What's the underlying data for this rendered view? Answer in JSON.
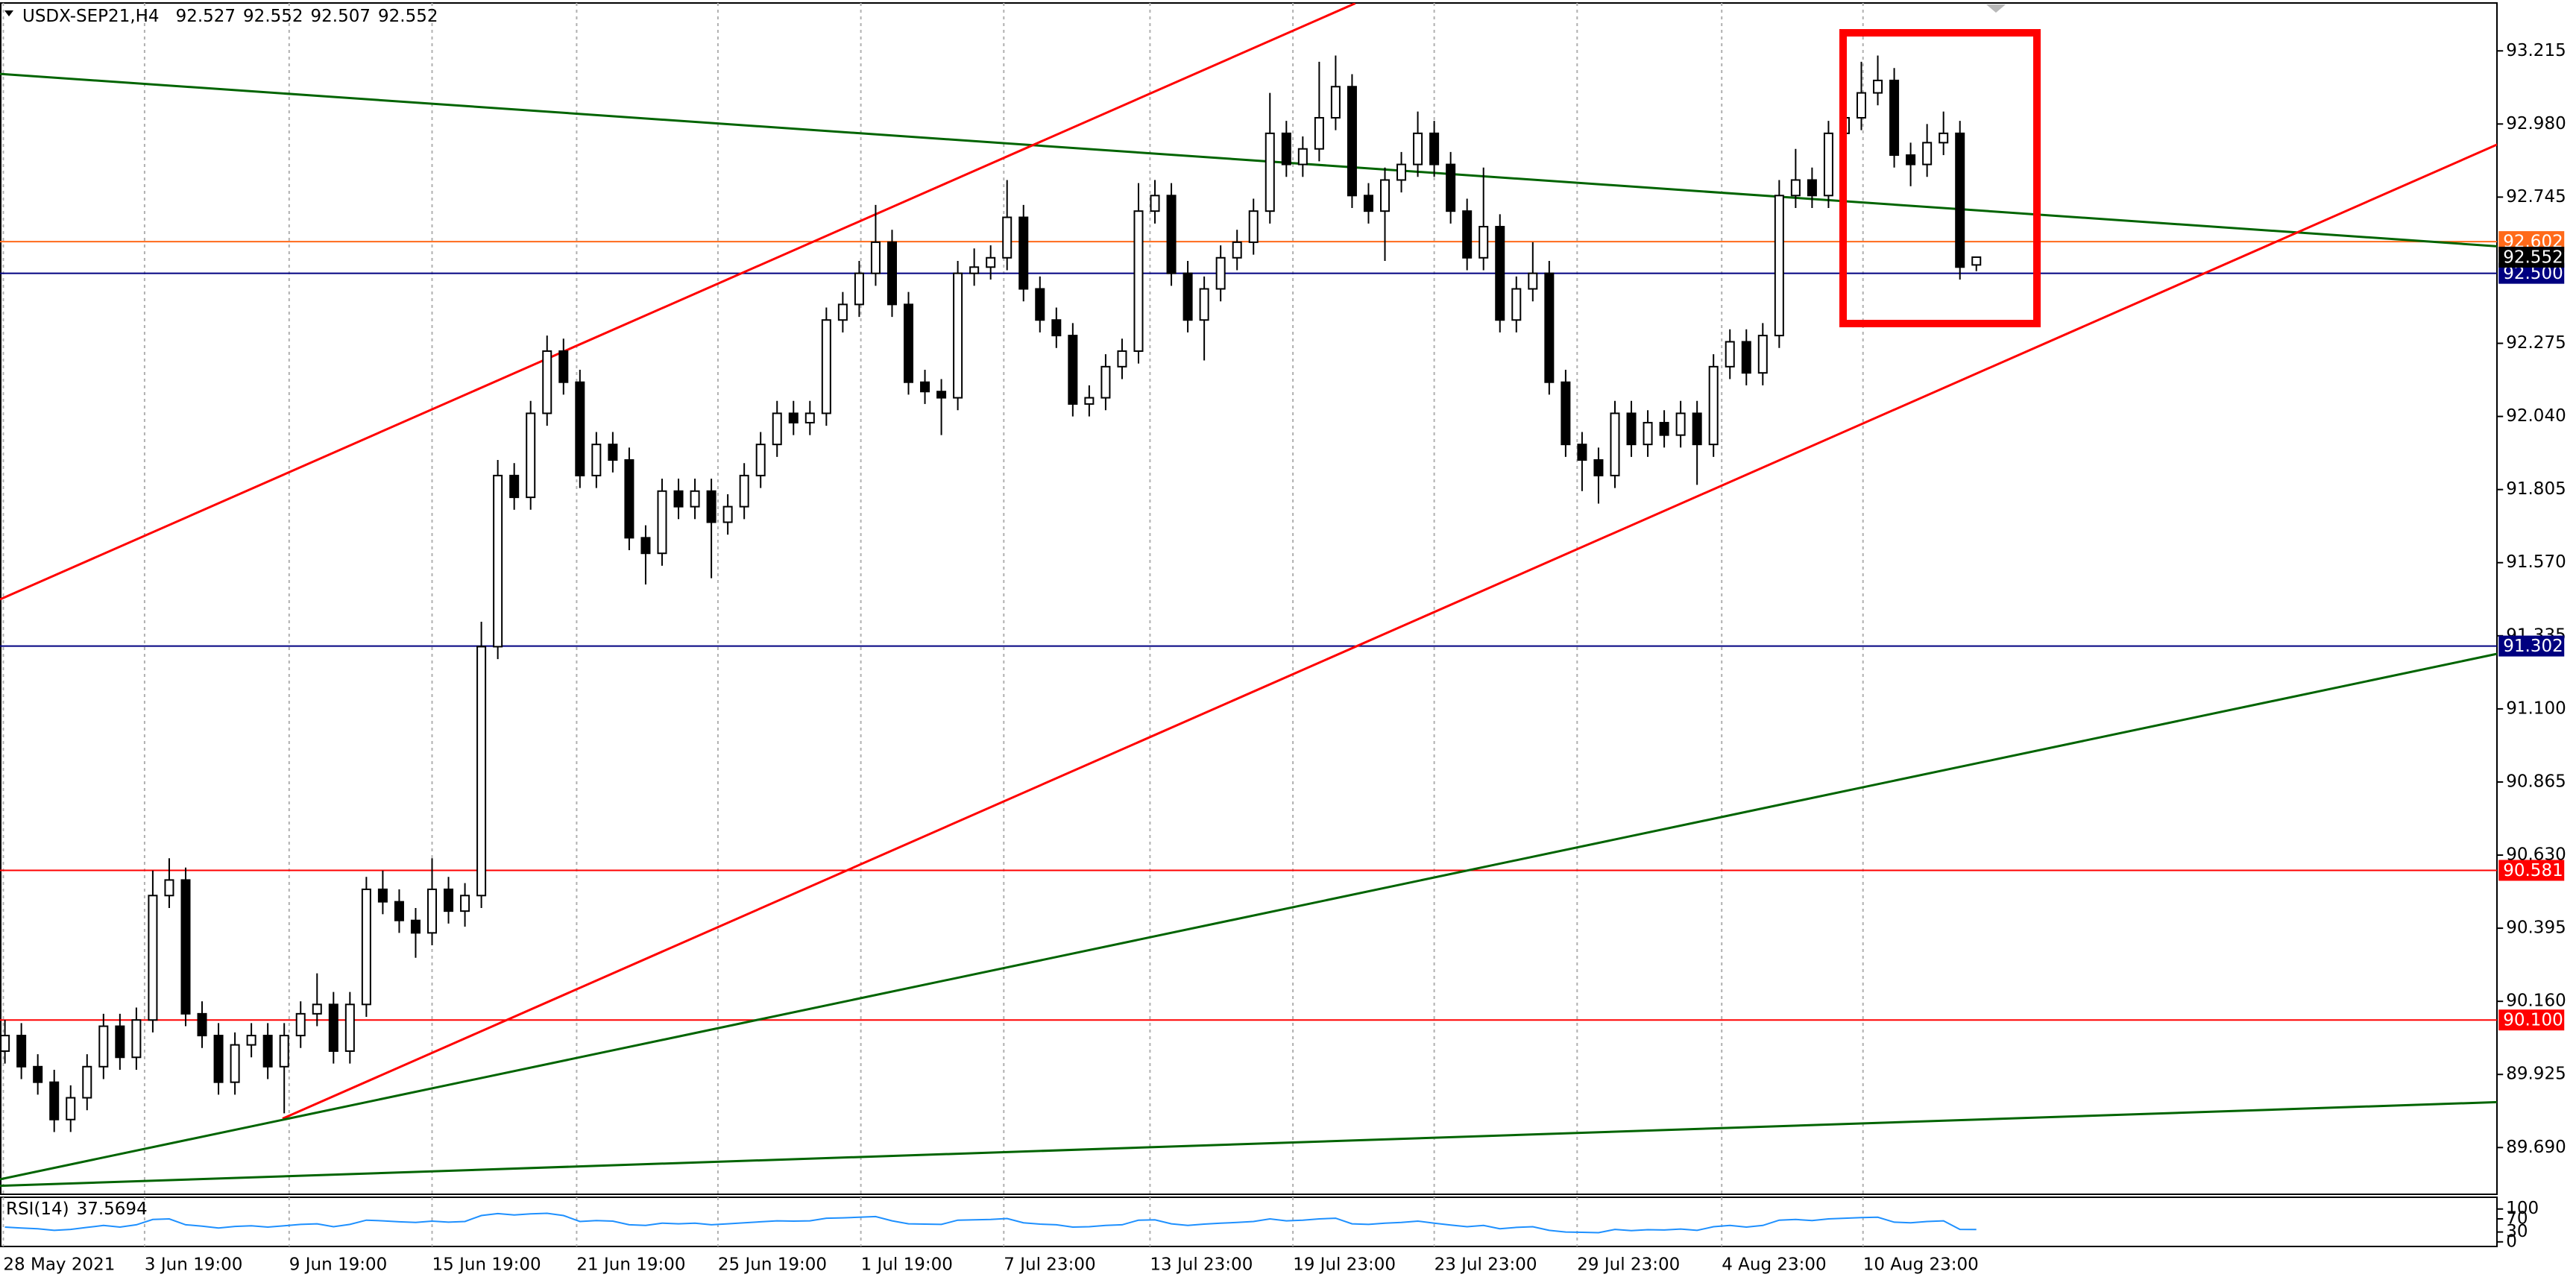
{
  "chart_data": [
    {
      "type": "candlestick",
      "title": "USDX-SEP21,H4",
      "candles": [
        [
          90.0,
          90.1,
          89.96,
          90.05
        ],
        [
          90.05,
          90.09,
          89.91,
          89.95
        ],
        [
          89.95,
          89.99,
          89.86,
          89.9
        ],
        [
          89.9,
          89.94,
          89.74,
          89.78
        ],
        [
          89.78,
          89.89,
          89.74,
          89.85
        ],
        [
          89.85,
          89.99,
          89.81,
          89.95
        ],
        [
          89.95,
          90.12,
          89.91,
          90.08
        ],
        [
          90.08,
          90.12,
          89.94,
          89.98
        ],
        [
          89.98,
          90.14,
          89.94,
          90.1
        ],
        [
          90.1,
          90.58,
          90.06,
          90.5
        ],
        [
          90.5,
          90.62,
          90.46,
          90.55
        ],
        [
          90.55,
          90.59,
          90.08,
          90.12
        ],
        [
          90.12,
          90.16,
          90.01,
          90.05
        ],
        [
          90.05,
          90.09,
          89.86,
          89.9
        ],
        [
          89.9,
          90.06,
          89.86,
          90.02
        ],
        [
          90.02,
          90.09,
          89.98,
          90.05
        ],
        [
          90.05,
          90.09,
          89.91,
          89.95
        ],
        [
          89.95,
          90.09,
          89.8,
          90.05
        ],
        [
          90.05,
          90.16,
          90.01,
          90.12
        ],
        [
          90.12,
          90.25,
          90.08,
          90.15
        ],
        [
          90.15,
          90.19,
          89.96,
          90.0
        ],
        [
          90.0,
          90.19,
          89.96,
          90.15
        ],
        [
          90.15,
          90.56,
          90.11,
          90.52
        ],
        [
          90.52,
          90.58,
          90.44,
          90.48
        ],
        [
          90.48,
          90.52,
          90.38,
          90.42
        ],
        [
          90.42,
          90.46,
          90.3,
          90.38
        ],
        [
          90.38,
          90.62,
          90.34,
          90.52
        ],
        [
          90.52,
          90.56,
          90.41,
          90.45
        ],
        [
          90.45,
          90.54,
          90.4,
          90.5
        ],
        [
          90.5,
          91.38,
          90.46,
          91.3
        ],
        [
          91.3,
          91.9,
          91.26,
          91.85
        ],
        [
          91.85,
          91.89,
          91.74,
          91.78
        ],
        [
          91.78,
          92.09,
          91.74,
          92.05
        ],
        [
          92.05,
          92.3,
          92.01,
          92.25
        ],
        [
          92.25,
          92.29,
          92.11,
          92.15
        ],
        [
          92.15,
          92.19,
          91.81,
          91.85
        ],
        [
          91.85,
          91.99,
          91.81,
          91.95
        ],
        [
          91.95,
          91.99,
          91.86,
          91.9
        ],
        [
          91.9,
          91.94,
          91.61,
          91.65
        ],
        [
          91.65,
          91.69,
          91.5,
          91.6
        ],
        [
          91.6,
          91.84,
          91.56,
          91.8
        ],
        [
          91.8,
          91.84,
          91.71,
          91.75
        ],
        [
          91.75,
          91.84,
          91.71,
          91.8
        ],
        [
          91.8,
          91.84,
          91.52,
          91.7
        ],
        [
          91.7,
          91.79,
          91.66,
          91.75
        ],
        [
          91.75,
          91.89,
          91.71,
          91.85
        ],
        [
          91.85,
          91.99,
          91.81,
          91.95
        ],
        [
          91.95,
          92.09,
          91.91,
          92.05
        ],
        [
          92.05,
          92.09,
          91.98,
          92.02
        ],
        [
          92.02,
          92.09,
          91.98,
          92.05
        ],
        [
          92.05,
          92.39,
          92.01,
          92.35
        ],
        [
          92.35,
          92.44,
          92.31,
          92.4
        ],
        [
          92.4,
          92.54,
          92.36,
          92.5
        ],
        [
          92.5,
          92.72,
          92.46,
          92.6
        ],
        [
          92.6,
          92.64,
          92.36,
          92.4
        ],
        [
          92.4,
          92.44,
          92.11,
          92.15
        ],
        [
          92.15,
          92.19,
          92.08,
          92.12
        ],
        [
          92.12,
          92.16,
          91.98,
          92.1
        ],
        [
          92.1,
          92.54,
          92.06,
          92.5
        ],
        [
          92.5,
          92.58,
          92.46,
          92.52
        ],
        [
          92.52,
          92.59,
          92.48,
          92.55
        ],
        [
          92.55,
          92.8,
          92.51,
          92.68
        ],
        [
          92.68,
          92.72,
          92.41,
          92.45
        ],
        [
          92.45,
          92.49,
          92.31,
          92.35
        ],
        [
          92.35,
          92.39,
          92.26,
          92.3
        ],
        [
          92.3,
          92.34,
          92.04,
          92.08
        ],
        [
          92.08,
          92.14,
          92.04,
          92.1
        ],
        [
          92.1,
          92.24,
          92.06,
          92.2
        ],
        [
          92.2,
          92.29,
          92.16,
          92.25
        ],
        [
          92.25,
          92.79,
          92.21,
          92.7
        ],
        [
          92.7,
          92.8,
          92.66,
          92.75
        ],
        [
          92.75,
          92.79,
          92.46,
          92.5
        ],
        [
          92.5,
          92.54,
          92.31,
          92.35
        ],
        [
          92.35,
          92.49,
          92.22,
          92.45
        ],
        [
          92.45,
          92.59,
          92.41,
          92.55
        ],
        [
          92.55,
          92.64,
          92.51,
          92.6
        ],
        [
          92.6,
          92.74,
          92.56,
          92.7
        ],
        [
          92.7,
          93.08,
          92.66,
          92.95
        ],
        [
          92.95,
          92.99,
          92.81,
          92.85
        ],
        [
          92.85,
          92.94,
          92.81,
          92.9
        ],
        [
          92.9,
          93.18,
          92.86,
          93.0
        ],
        [
          93.0,
          93.2,
          92.96,
          93.1
        ],
        [
          93.1,
          93.14,
          92.71,
          92.75
        ],
        [
          92.75,
          92.79,
          92.66,
          92.7
        ],
        [
          92.7,
          92.84,
          92.54,
          92.8
        ],
        [
          92.8,
          92.89,
          92.76,
          92.85
        ],
        [
          92.85,
          93.02,
          92.81,
          92.95
        ],
        [
          92.95,
          92.99,
          92.81,
          92.85
        ],
        [
          92.85,
          92.89,
          92.66,
          92.7
        ],
        [
          92.7,
          92.74,
          92.51,
          92.55
        ],
        [
          92.55,
          92.84,
          92.51,
          92.65
        ],
        [
          92.65,
          92.69,
          92.31,
          92.35
        ],
        [
          92.35,
          92.49,
          92.31,
          92.45
        ],
        [
          92.45,
          92.6,
          92.41,
          92.5
        ],
        [
          92.5,
          92.54,
          92.11,
          92.15
        ],
        [
          92.15,
          92.19,
          91.91,
          91.95
        ],
        [
          91.95,
          91.99,
          91.8,
          91.9
        ],
        [
          91.9,
          91.94,
          91.76,
          91.85
        ],
        [
          91.85,
          92.09,
          91.81,
          92.05
        ],
        [
          92.05,
          92.09,
          91.91,
          91.95
        ],
        [
          91.95,
          92.06,
          91.91,
          92.02
        ],
        [
          92.02,
          92.06,
          91.94,
          91.98
        ],
        [
          91.98,
          92.09,
          91.94,
          92.05
        ],
        [
          92.05,
          92.09,
          91.82,
          91.95
        ],
        [
          91.95,
          92.24,
          91.91,
          92.2
        ],
        [
          92.2,
          92.32,
          92.16,
          92.28
        ],
        [
          92.28,
          92.32,
          92.14,
          92.18
        ],
        [
          92.18,
          92.34,
          92.14,
          92.3
        ],
        [
          92.3,
          92.8,
          92.26,
          92.75
        ],
        [
          92.75,
          92.9,
          92.71,
          92.8
        ],
        [
          92.8,
          92.84,
          92.71,
          92.75
        ],
        [
          92.75,
          92.99,
          92.71,
          92.95
        ],
        [
          92.95,
          93.04,
          92.91,
          93.0
        ],
        [
          93.0,
          93.18,
          92.96,
          93.08
        ],
        [
          93.08,
          93.2,
          93.04,
          93.12
        ],
        [
          93.12,
          93.16,
          92.84,
          92.88
        ],
        [
          92.88,
          92.92,
          92.78,
          92.85
        ],
        [
          92.85,
          92.98,
          92.81,
          92.92
        ],
        [
          92.92,
          93.02,
          92.88,
          92.95
        ],
        [
          92.95,
          92.99,
          92.48,
          92.52
        ],
        [
          92.527,
          92.552,
          92.507,
          92.552
        ]
      ],
      "up_color": "#ffffff",
      "down_color": "#000000",
      "xlim": [
        -0.3,
        151.7
      ],
      "xticks": [
        {
          "value": -0.1,
          "label": "28 May 2021"
        },
        {
          "value": 8.5,
          "label": "3 Jun 19:00"
        },
        {
          "value": 17.3,
          "label": "9 Jun 19:00"
        },
        {
          "value": 26,
          "label": "15 Jun 19:00"
        },
        {
          "value": 34.8,
          "label": "21 Jun 19:00"
        },
        {
          "value": 43.4,
          "label": "25 Jun 19:00"
        },
        {
          "value": 52.1,
          "label": "1 Jul 19:00"
        },
        {
          "value": 60.8,
          "label": "7 Jul 23:00"
        },
        {
          "value": 69.7,
          "label": "13 Jul 23:00"
        },
        {
          "value": 78.4,
          "label": "19 Jul 23:00"
        },
        {
          "value": 87,
          "label": "23 Jul 23:00"
        },
        {
          "value": 95.7,
          "label": "29 Jul 23:00"
        },
        {
          "value": 104.5,
          "label": "4 Aug 23:00"
        },
        {
          "value": 113.1,
          "label": "10 Aug 23:00"
        }
      ],
      "ylim": [
        89.54,
        93.368
      ],
      "yticks": [
        93.215,
        {
          "value": 92.98,
          "label": "92.980"
        },
        92.745,
        92.275,
        {
          "value": 92.04,
          "label": "92.040"
        },
        91.805,
        {
          "value": 91.57,
          "label": "91.570"
        },
        91.335,
        {
          "value": 91.1,
          "label": "91.100"
        },
        90.865,
        {
          "value": 90.63,
          "label": "90.630"
        },
        90.395,
        {
          "value": 90.16,
          "label": "90.160"
        },
        89.925,
        {
          "value": 89.69,
          "label": "89.690"
        }
      ],
      "grid": true,
      "levels": [
        {
          "value": 92.602,
          "color": "#ff6a1a"
        },
        {
          "value": 92.5,
          "label": "92.500",
          "color": "#000080"
        },
        {
          "value": 91.302,
          "color": "#000080"
        },
        {
          "value": 90.581,
          "color": "#ff0000"
        },
        {
          "value": 90.1,
          "label": "90.100",
          "color": "#ff0000"
        }
      ],
      "trendlines": [
        {
          "color": "#006400",
          "x": [
            -0.3,
            151.7
          ],
          "y": [
            93.141,
            92.587
          ]
        },
        {
          "color": "#ff0000",
          "x": [
            -0.3,
            82.2
          ],
          "y": [
            91.452,
            93.368
          ]
        },
        {
          "color": "#ff0000",
          "x": [
            16.9,
            151.7
          ],
          "y": [
            89.783,
            92.914
          ]
        },
        {
          "color": "#006400",
          "x": [
            -0.3,
            151.7
          ],
          "y": [
            89.588,
            91.277
          ]
        },
        {
          "color": "#006400",
          "x": [
            -0.3,
            151.7
          ],
          "y": [
            89.567,
            89.836
          ]
        }
      ]
    },
    {
      "type": "line",
      "name": "RSI(14)",
      "color": "#1e90ff",
      "values": [
        45,
        42,
        40,
        35,
        38,
        44,
        50,
        45,
        52,
        68,
        70,
        52,
        48,
        42,
        47,
        49,
        45,
        49,
        53,
        55,
        46,
        53,
        66,
        64,
        61,
        59,
        63,
        60,
        62,
        80,
        86,
        82,
        85,
        87,
        80,
        62,
        65,
        63,
        52,
        50,
        57,
        55,
        57,
        52,
        55,
        58,
        61,
        64,
        63,
        64,
        72,
        73,
        75,
        77,
        64,
        55,
        54,
        53,
        66,
        67,
        68,
        71,
        58,
        54,
        52,
        45,
        46,
        50,
        52,
        66,
        67,
        55,
        50,
        54,
        57,
        59,
        62,
        70,
        64,
        66,
        70,
        72,
        55,
        53,
        57,
        59,
        63,
        57,
        51,
        46,
        50,
        40,
        44,
        46,
        35,
        30,
        29,
        28,
        38,
        34,
        37,
        36,
        39,
        35,
        46,
        50,
        45,
        50,
        66,
        68,
        65,
        70,
        72,
        74,
        75,
        60,
        58,
        62,
        64,
        38,
        37.5694
      ],
      "ylim": [
        -15,
        135
      ],
      "yticks": [
        100,
        70,
        30,
        0
      ]
    }
  ]
}
